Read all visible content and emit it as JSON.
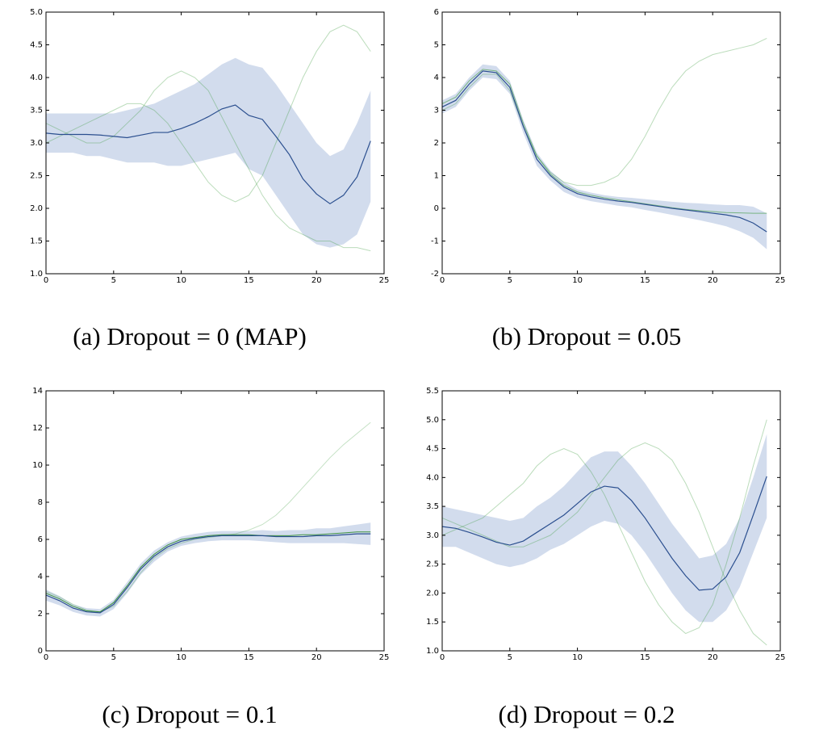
{
  "chart_data": [
    {
      "type": "line",
      "title": "(a) Dropout = 0 (MAP)",
      "x": [
        0,
        1,
        2,
        3,
        4,
        5,
        6,
        7,
        8,
        9,
        10,
        11,
        12,
        13,
        14,
        15,
        16,
        17,
        18,
        19,
        20,
        21,
        22,
        23,
        24
      ],
      "xlim": [
        0,
        25
      ],
      "xticks": [
        0,
        5,
        10,
        15,
        20,
        25
      ],
      "ylim": [
        1,
        5
      ],
      "yticks": [
        {
          "value": 1,
          "label": "1.0"
        },
        1.5,
        {
          "value": 2,
          "label": "2.0"
        },
        2.5,
        {
          "value": 3,
          "label": "3.0"
        },
        3.5,
        {
          "value": 4,
          "label": "4.0"
        },
        4.5,
        {
          "value": 5,
          "label": "5.0"
        }
      ],
      "band": {
        "color": "#7f9ccc",
        "lower": [
          2.85,
          2.85,
          2.85,
          2.8,
          2.8,
          2.75,
          2.7,
          2.7,
          2.7,
          2.65,
          2.65,
          2.7,
          2.75,
          2.8,
          2.85,
          2.6,
          2.5,
          2.2,
          1.9,
          1.6,
          1.45,
          1.4,
          1.45,
          1.6,
          2.1
        ],
        "upper": [
          3.45,
          3.45,
          3.45,
          3.45,
          3.45,
          3.45,
          3.5,
          3.55,
          3.6,
          3.7,
          3.8,
          3.9,
          4.05,
          4.2,
          4.3,
          4.2,
          4.15,
          3.9,
          3.6,
          3.3,
          3.0,
          2.8,
          2.9,
          3.3,
          3.8
        ]
      },
      "series": [
        {
          "color": "#3c9a3c",
          "opacity": 0.35,
          "values": [
            3.0,
            3.1,
            3.2,
            3.3,
            3.4,
            3.5,
            3.6,
            3.6,
            3.5,
            3.3,
            3.0,
            2.7,
            2.4,
            2.2,
            2.1,
            2.2,
            2.5,
            3.0,
            3.5,
            4.0,
            4.4,
            4.7,
            4.8,
            4.7,
            4.4
          ]
        },
        {
          "color": "#3c9a3c",
          "opacity": 0.35,
          "values": [
            3.3,
            3.2,
            3.1,
            3.0,
            3.0,
            3.1,
            3.3,
            3.5,
            3.8,
            4.0,
            4.1,
            4.0,
            3.8,
            3.4,
            3.0,
            2.6,
            2.2,
            1.9,
            1.7,
            1.6,
            1.5,
            1.5,
            1.4,
            1.4,
            1.35
          ]
        },
        {
          "color": "#2b4f8f",
          "opacity": 1,
          "values": [
            3.15,
            3.13,
            3.13,
            3.13,
            3.12,
            3.1,
            3.08,
            3.12,
            3.16,
            3.16,
            3.22,
            3.3,
            3.4,
            3.52,
            3.58,
            3.42,
            3.36,
            3.1,
            2.82,
            2.45,
            2.22,
            2.07,
            2.2,
            2.48,
            3.03
          ]
        }
      ]
    },
    {
      "type": "line",
      "title": "(b) Dropout = 0.05",
      "x": [
        0,
        1,
        2,
        3,
        4,
        5,
        6,
        7,
        8,
        9,
        10,
        11,
        12,
        13,
        14,
        15,
        16,
        17,
        18,
        19,
        20,
        21,
        22,
        23,
        24
      ],
      "xlim": [
        0,
        25
      ],
      "xticks": [
        0,
        5,
        10,
        15,
        20,
        25
      ],
      "ylim": [
        -2,
        6
      ],
      "yticks": [
        -2,
        -1,
        0,
        1,
        2,
        3,
        4,
        5,
        6
      ],
      "band": {
        "color": "#7f9ccc",
        "lower": [
          2.9,
          3.1,
          3.6,
          4.0,
          3.95,
          3.5,
          2.3,
          1.3,
          0.85,
          0.5,
          0.32,
          0.22,
          0.15,
          0.08,
          0.03,
          -0.05,
          -0.12,
          -0.2,
          -0.28,
          -0.36,
          -0.45,
          -0.55,
          -0.7,
          -0.9,
          -1.25
        ],
        "upper": [
          3.3,
          3.5,
          4.0,
          4.4,
          4.35,
          3.9,
          2.7,
          1.7,
          1.15,
          0.8,
          0.58,
          0.48,
          0.4,
          0.35,
          0.32,
          0.28,
          0.24,
          0.2,
          0.17,
          0.15,
          0.12,
          0.1,
          0.1,
          0.05,
          -0.15
        ]
      },
      "series": [
        {
          "color": "#3c9a3c",
          "opacity": 0.35,
          "values": [
            3.0,
            3.2,
            3.7,
            4.1,
            4.1,
            3.6,
            2.5,
            1.6,
            1.1,
            0.8,
            0.7,
            0.7,
            0.8,
            1.0,
            1.5,
            2.2,
            3.0,
            3.7,
            4.2,
            4.5,
            4.7,
            4.8,
            4.9,
            5.0,
            5.2
          ]
        },
        {
          "color": "#3c9a3c",
          "opacity": 0.6,
          "values": [
            3.2,
            3.4,
            3.9,
            4.25,
            4.2,
            3.8,
            2.6,
            1.6,
            1.05,
            0.7,
            0.5,
            0.4,
            0.32,
            0.26,
            0.2,
            0.14,
            0.08,
            0.02,
            -0.03,
            -0.07,
            -0.1,
            -0.13,
            -0.14,
            -0.15,
            -0.15
          ]
        },
        {
          "color": "#2b4f8f",
          "opacity": 1,
          "values": [
            3.1,
            3.3,
            3.8,
            4.2,
            4.15,
            3.7,
            2.5,
            1.5,
            1.0,
            0.65,
            0.45,
            0.35,
            0.28,
            0.22,
            0.18,
            0.12,
            0.06,
            0.0,
            -0.05,
            -0.1,
            -0.15,
            -0.2,
            -0.28,
            -0.45,
            -0.72
          ]
        }
      ]
    },
    {
      "type": "line",
      "title": "(c) Dropout = 0.1",
      "x": [
        0,
        1,
        2,
        3,
        4,
        5,
        6,
        7,
        8,
        9,
        10,
        11,
        12,
        13,
        14,
        15,
        16,
        17,
        18,
        19,
        20,
        21,
        22,
        23,
        24
      ],
      "xlim": [
        0,
        25
      ],
      "xticks": [
        0,
        5,
        10,
        15,
        20,
        25
      ],
      "ylim": [
        0,
        14
      ],
      "yticks": [
        0,
        2,
        4,
        6,
        8,
        10,
        12,
        14
      ],
      "band": {
        "color": "#7f9ccc",
        "lower": [
          2.7,
          2.45,
          2.1,
          1.9,
          1.85,
          2.25,
          3.1,
          4.1,
          4.8,
          5.35,
          5.65,
          5.8,
          5.9,
          5.95,
          5.95,
          5.95,
          5.9,
          5.85,
          5.8,
          5.8,
          5.8,
          5.8,
          5.8,
          5.75,
          5.7
        ],
        "upper": [
          3.3,
          2.95,
          2.5,
          2.3,
          2.25,
          2.75,
          3.7,
          4.7,
          5.4,
          5.85,
          6.15,
          6.3,
          6.4,
          6.45,
          6.45,
          6.45,
          6.5,
          6.45,
          6.5,
          6.5,
          6.6,
          6.6,
          6.7,
          6.8,
          6.9
        ]
      },
      "series": [
        {
          "color": "#3c9a3c",
          "opacity": 0.3,
          "values": [
            3.2,
            2.9,
            2.5,
            2.2,
            2.1,
            2.4,
            3.2,
            4.2,
            5.0,
            5.5,
            5.8,
            6.0,
            6.1,
            6.2,
            6.3,
            6.5,
            6.8,
            7.3,
            8.0,
            8.8,
            9.6,
            10.4,
            11.1,
            11.7,
            12.3
          ]
        },
        {
          "color": "#2f8a2f",
          "opacity": 0.9,
          "values": [
            3.1,
            2.8,
            2.4,
            2.15,
            2.1,
            2.6,
            3.5,
            4.5,
            5.2,
            5.7,
            6.0,
            6.1,
            6.2,
            6.25,
            6.25,
            6.25,
            6.2,
            6.2,
            6.2,
            6.25,
            6.25,
            6.3,
            6.35,
            6.4,
            6.4
          ]
        },
        {
          "color": "#2b4f8f",
          "opacity": 1,
          "values": [
            3.0,
            2.7,
            2.3,
            2.1,
            2.05,
            2.5,
            3.4,
            4.4,
            5.1,
            5.6,
            5.9,
            6.05,
            6.15,
            6.2,
            6.2,
            6.2,
            6.2,
            6.15,
            6.15,
            6.15,
            6.2,
            6.2,
            6.25,
            6.3,
            6.3
          ]
        }
      ]
    },
    {
      "type": "line",
      "title": "(d) Dropout = 0.2",
      "x": [
        0,
        1,
        2,
        3,
        4,
        5,
        6,
        7,
        8,
        9,
        10,
        11,
        12,
        13,
        14,
        15,
        16,
        17,
        18,
        19,
        20,
        21,
        22,
        23,
        24
      ],
      "xlim": [
        0,
        25
      ],
      "xticks": [
        0,
        5,
        10,
        15,
        20,
        25
      ],
      "ylim": [
        1,
        5.5
      ],
      "yticks": [
        {
          "value": 1,
          "label": "1.0"
        },
        1.5,
        {
          "value": 2,
          "label": "2.0"
        },
        2.5,
        {
          "value": 3,
          "label": "3.0"
        },
        3.5,
        {
          "value": 4,
          "label": "4.0"
        },
        4.5,
        {
          "value": 5,
          "label": "5.0"
        },
        5.5
      ],
      "band": {
        "color": "#7f9ccc",
        "lower": [
          2.8,
          2.8,
          2.7,
          2.6,
          2.5,
          2.45,
          2.5,
          2.6,
          2.75,
          2.85,
          3.0,
          3.15,
          3.25,
          3.2,
          3.0,
          2.7,
          2.35,
          2.0,
          1.7,
          1.5,
          1.5,
          1.7,
          2.1,
          2.7,
          3.3
        ],
        "upper": [
          3.5,
          3.45,
          3.4,
          3.35,
          3.3,
          3.25,
          3.3,
          3.5,
          3.65,
          3.85,
          4.1,
          4.35,
          4.45,
          4.45,
          4.2,
          3.9,
          3.55,
          3.2,
          2.9,
          2.6,
          2.65,
          2.85,
          3.3,
          4.0,
          4.75
        ]
      },
      "series": [
        {
          "color": "#3c9a3c",
          "opacity": 0.35,
          "values": [
            3.0,
            3.1,
            3.2,
            3.3,
            3.5,
            3.7,
            3.9,
            4.2,
            4.4,
            4.5,
            4.4,
            4.1,
            3.7,
            3.2,
            2.7,
            2.2,
            1.8,
            1.5,
            1.3,
            1.4,
            1.8,
            2.5,
            3.3,
            4.2,
            5.0
          ]
        },
        {
          "color": "#3c9a3c",
          "opacity": 0.35,
          "values": [
            3.3,
            3.2,
            3.1,
            3.0,
            2.9,
            2.8,
            2.8,
            2.9,
            3.0,
            3.2,
            3.4,
            3.7,
            4.0,
            4.3,
            4.5,
            4.6,
            4.5,
            4.3,
            3.9,
            3.4,
            2.8,
            2.2,
            1.7,
            1.3,
            1.1
          ]
        },
        {
          "color": "#2b4f8f",
          "opacity": 1,
          "values": [
            3.15,
            3.12,
            3.05,
            2.97,
            2.88,
            2.83,
            2.9,
            3.05,
            3.2,
            3.35,
            3.55,
            3.75,
            3.85,
            3.82,
            3.6,
            3.3,
            2.95,
            2.6,
            2.3,
            2.05,
            2.07,
            2.28,
            2.7,
            3.35,
            4.02
          ]
        }
      ]
    }
  ]
}
